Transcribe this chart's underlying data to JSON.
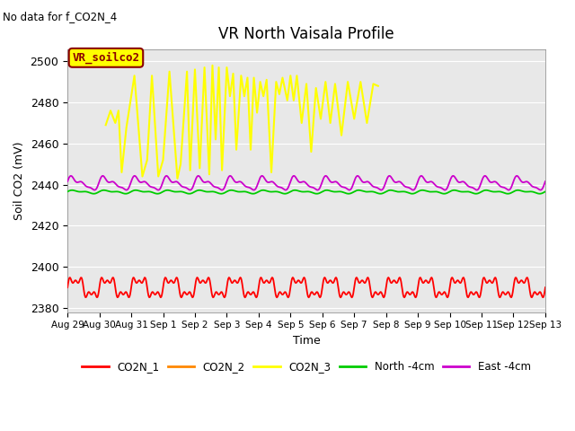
{
  "title": "VR North Vaisala Profile",
  "subtitle": "No data for f_CO2N_4",
  "ylabel": "Soil CO2 (mV)",
  "xlabel": "Time",
  "annotation": "VR_soilco2",
  "ylim": [
    2378,
    2506
  ],
  "yticks": [
    2380,
    2400,
    2420,
    2440,
    2460,
    2480,
    2500
  ],
  "xtick_labels": [
    "Aug 29",
    "Aug 30",
    "Aug 31",
    "Sep 1",
    "Sep 2",
    "Sep 3",
    "Sep 4",
    "Sep 5",
    "Sep 6",
    "Sep 7",
    "Sep 8",
    "Sep 9",
    "Sep 10",
    "Sep 11",
    "Sep 12",
    "Sep 13"
  ],
  "n_days": 15,
  "bg_color": "#e8e8e8",
  "colors": {
    "CO2N_1": "#ff0000",
    "CO2N_2": "#ff8800",
    "CO2N_3": "#ffff00",
    "North_4cm": "#00cc00",
    "East_4cm": "#cc00cc"
  },
  "legend_labels": [
    "CO2N_1",
    "CO2N_2",
    "CO2N_3",
    "North -4cm",
    "East -4cm"
  ]
}
